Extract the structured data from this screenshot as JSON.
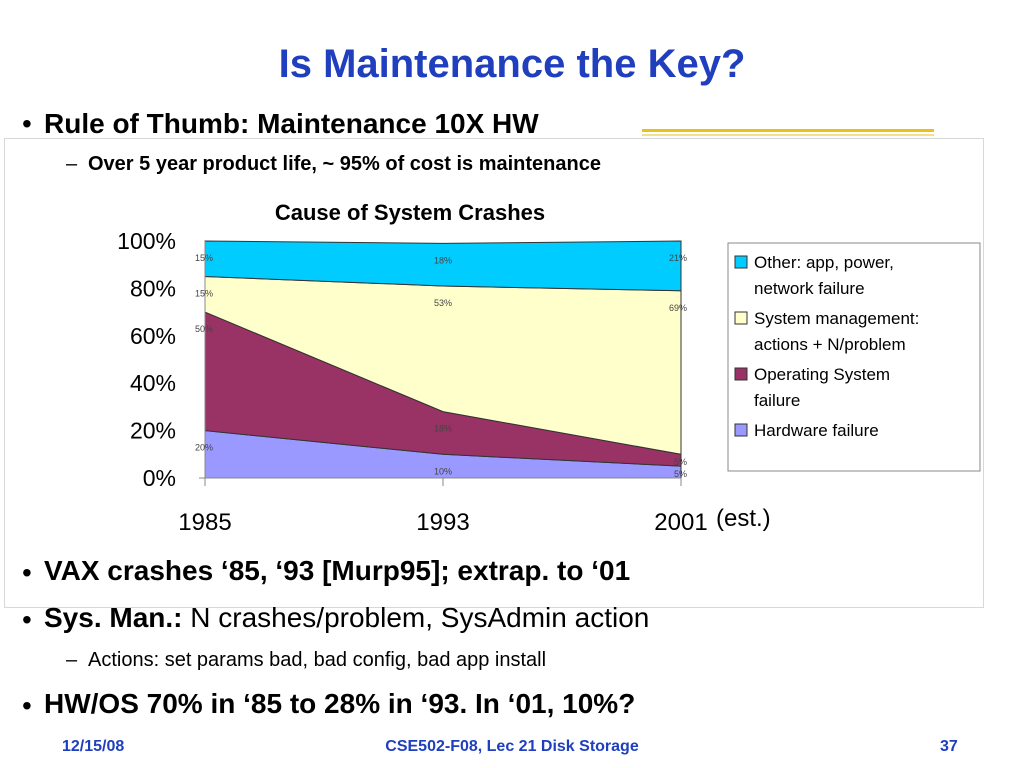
{
  "slide": {
    "title": "Is Maintenance the Key?",
    "bullet1": "Rule of Thumb: Maintenance 10X HW",
    "sub1": "Over 5 year product life, ~ 95% of cost is maintenance",
    "bullet2": "VAX crashes ‘85, ‘93 [Murp95]; extrap. to ‘01",
    "bullet3_bold": "Sys. Man.:",
    "bullet3_rest": " N crashes/problem, SysAdmin action",
    "sub2": "Actions: set params bad, bad config, bad app install",
    "bullet4": "HW/OS 70% in ‘85 to 28% in ‘93. In ‘01, 10%?",
    "bullet_glyph": "•",
    "dash_glyph": "–"
  },
  "footer": {
    "date": "12/15/08",
    "course": "CSE502-F08, Lec 21 Disk Storage",
    "page": "37"
  },
  "colors": {
    "title": "#1f3fbf",
    "hardware": "#9999ff",
    "os": "#993366",
    "sysman": "#ffffcc",
    "other": "#00ccff"
  },
  "chart_data": {
    "type": "area",
    "stacked": true,
    "title": "Cause of System Crashes",
    "x": [
      "1985",
      "1993",
      "2001"
    ],
    "x_note": "(est.)",
    "ylim": [
      0,
      100
    ],
    "yticks": [
      "0%",
      "20%",
      "40%",
      "60%",
      "80%",
      "100%"
    ],
    "series": [
      {
        "name": "Hardware failure",
        "color": "#9999ff",
        "values": [
          20,
          10,
          5
        ],
        "labels": [
          "20%",
          "10%",
          "5%"
        ]
      },
      {
        "name": "Operating System failure",
        "color": "#993366",
        "values": [
          50,
          18,
          5
        ],
        "labels": [
          "50%",
          "18%",
          "5%"
        ]
      },
      {
        "name": "System management: actions + N/problem",
        "color": "#ffffcc",
        "values": [
          15,
          53,
          69
        ],
        "labels": [
          "15%",
          "53%",
          "69%"
        ]
      },
      {
        "name": "Other: app, power, network failure",
        "color": "#00ccff",
        "values": [
          15,
          18,
          21
        ],
        "labels": [
          "15%",
          "18%",
          "21%"
        ]
      }
    ],
    "legend": [
      {
        "line1": "Other: app, power,",
        "line2": "network failure",
        "color": "#00ccff"
      },
      {
        "line1": "System management:",
        "line2": "actions + N/problem",
        "color": "#ffffcc"
      },
      {
        "line1": "Operating System",
        "line2": "failure",
        "color": "#993366"
      },
      {
        "line1": "Hardware failure",
        "line2": "",
        "color": "#9999ff"
      }
    ],
    "legend_position": "right"
  }
}
